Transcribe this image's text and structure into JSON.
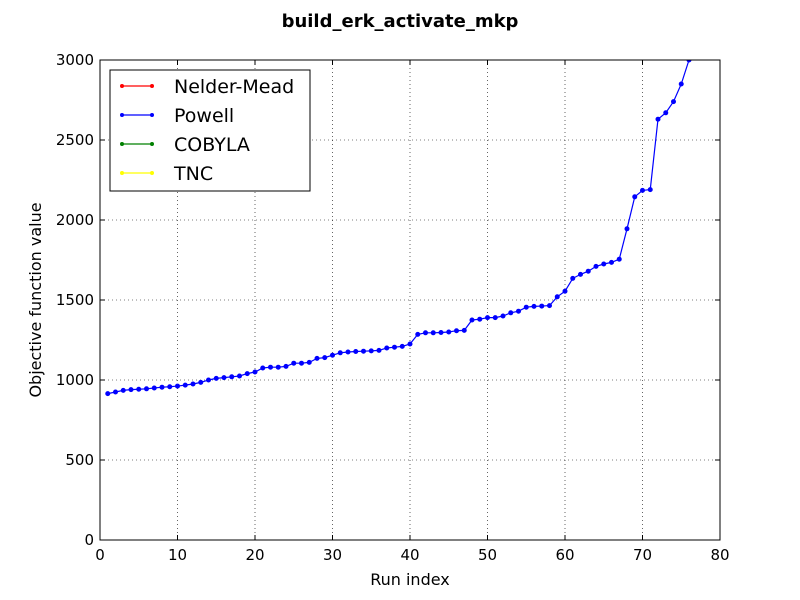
{
  "chart_data": {
    "type": "line",
    "title": "build_erk_activate_mkp",
    "xlabel": "Run index",
    "ylabel": "Objective function value",
    "xlim": [
      0,
      80
    ],
    "ylim": [
      0,
      3000
    ],
    "xticks": [
      0,
      10,
      20,
      30,
      40,
      50,
      60,
      70,
      80
    ],
    "yticks": [
      0,
      500,
      1000,
      1500,
      2000,
      2500,
      3000
    ],
    "grid": true,
    "legend_position": "top-left",
    "series": [
      {
        "name": "Nelder-Mead",
        "color": "#ff0000",
        "x": [],
        "y": []
      },
      {
        "name": "Powell",
        "color": "#0000ff",
        "x": [
          1,
          2,
          3,
          4,
          5,
          6,
          7,
          8,
          9,
          10,
          11,
          12,
          13,
          14,
          15,
          16,
          17,
          18,
          19,
          20,
          21,
          22,
          23,
          24,
          25,
          26,
          27,
          28,
          29,
          30,
          31,
          32,
          33,
          34,
          35,
          36,
          37,
          38,
          39,
          40,
          41,
          42,
          43,
          44,
          45,
          46,
          47,
          48,
          49,
          50,
          51,
          52,
          53,
          54,
          55,
          56,
          57,
          58,
          59,
          60,
          61,
          62,
          63,
          64,
          65,
          66,
          67,
          68,
          69,
          70,
          71,
          72,
          73,
          74,
          75,
          76,
          77
        ],
        "y": [
          915,
          925,
          935,
          940,
          942,
          945,
          950,
          955,
          958,
          962,
          968,
          975,
          985,
          1000,
          1010,
          1015,
          1020,
          1025,
          1040,
          1050,
          1075,
          1080,
          1080,
          1085,
          1105,
          1105,
          1110,
          1135,
          1140,
          1155,
          1170,
          1175,
          1178,
          1180,
          1182,
          1185,
          1200,
          1205,
          1210,
          1225,
          1285,
          1295,
          1295,
          1297,
          1300,
          1308,
          1310,
          1375,
          1380,
          1390,
          1390,
          1400,
          1420,
          1430,
          1455,
          1460,
          1462,
          1465,
          1520,
          1555,
          1635,
          1660,
          1680,
          1710,
          1725,
          1735,
          1755,
          1945,
          2145,
          2185,
          2190,
          2630,
          2670,
          2740,
          2850,
          3000,
          3200
        ]
      },
      {
        "name": "COBYLA",
        "color": "#008000",
        "x": [],
        "y": []
      },
      {
        "name": "TNC",
        "color": "#ffff00",
        "x": [],
        "y": []
      }
    ]
  }
}
